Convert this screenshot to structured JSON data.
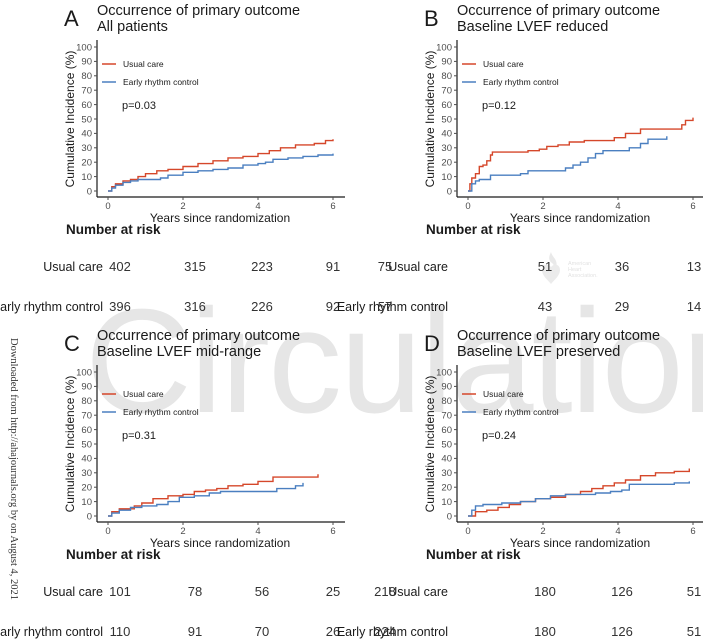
{
  "watermark": "Circulation",
  "side_text": "Downloaded from http://ahajournals.org by on August 4, 2021",
  "aha_logo": {
    "lines": [
      "American",
      "Heart",
      "Association."
    ]
  },
  "colors": {
    "usual_care": "#d5472a",
    "early_rhythm_control": "#4a7fc0",
    "axis": "#1a1a1a",
    "tick": "#4d4d4d"
  },
  "chart_data": [
    {
      "type": "line",
      "panel": "A",
      "title": "Occurrence of primary outcome",
      "subtitle": "All patients",
      "xlabel": "Years since randomization",
      "ylabel": "Cumulative Incidence (%)",
      "xlim": [
        0,
        6
      ],
      "ylim": [
        0,
        100
      ],
      "xticks": [
        0,
        2,
        4,
        6
      ],
      "yticks": [
        0,
        10,
        20,
        30,
        40,
        50,
        60,
        70,
        80,
        90,
        100
      ],
      "legend": [
        "Usual care",
        "Early rhythm control"
      ],
      "legend_position": "top-left",
      "p_value": "p=0.03",
      "series": [
        {
          "name": "Usual care",
          "x": [
            0,
            0.1,
            0.2,
            0.4,
            0.6,
            0.8,
            1.0,
            1.3,
            1.6,
            2.0,
            2.4,
            2.8,
            3.2,
            3.6,
            4.0,
            4.3,
            4.6,
            5.0,
            5.5,
            5.8,
            6.0
          ],
          "y": [
            0,
            3,
            5,
            7,
            8,
            10,
            12,
            14,
            15,
            17,
            19,
            21,
            23,
            24,
            26,
            28,
            30,
            32,
            33,
            35,
            36
          ]
        },
        {
          "name": "Early rhythm control",
          "x": [
            0,
            0.1,
            0.2,
            0.4,
            0.6,
            0.8,
            1.0,
            1.4,
            1.6,
            2.0,
            2.4,
            2.8,
            3.2,
            3.6,
            4.0,
            4.2,
            4.4,
            4.8,
            5.2,
            5.6,
            6.0
          ],
          "y": [
            0,
            2,
            4,
            6,
            7,
            8,
            8,
            9,
            11,
            13,
            14,
            15,
            16,
            18,
            19,
            20,
            22,
            23,
            24,
            25,
            26
          ]
        }
      ],
      "risk_table": {
        "title": "Number at risk",
        "times": [
          0,
          2,
          4,
          6
        ],
        "rows": [
          {
            "label": "Usual care",
            "values": [
              402,
              315,
              223,
              91
            ]
          },
          {
            "label": "Early rhythm control",
            "values": [
              396,
              316,
              226,
              92
            ]
          }
        ]
      }
    },
    {
      "type": "line",
      "panel": "B",
      "title": "Occurrence of primary outcome",
      "subtitle": "Baseline LVEF reduced",
      "xlabel": "Years since randomization",
      "ylabel": "Cumulative Incidence (%)",
      "xlim": [
        0,
        6
      ],
      "ylim": [
        0,
        100
      ],
      "xticks": [
        0,
        2,
        4,
        6
      ],
      "yticks": [
        0,
        10,
        20,
        30,
        40,
        50,
        60,
        70,
        80,
        90,
        100
      ],
      "legend": [
        "Usual care",
        "Early rhythm control"
      ],
      "legend_position": "top-left",
      "p_value": "p=0.12",
      "series": [
        {
          "name": "Usual care",
          "x": [
            0,
            0.05,
            0.1,
            0.2,
            0.3,
            0.4,
            0.5,
            0.6,
            0.65,
            1.6,
            1.9,
            2.1,
            2.4,
            2.7,
            3.1,
            3.9,
            4.2,
            4.6,
            5.7,
            5.8,
            6.0
          ],
          "y": [
            0,
            5,
            9,
            12,
            17,
            18,
            21,
            25,
            27,
            28,
            29,
            31,
            32,
            34,
            35,
            37,
            40,
            43,
            46,
            49,
            51
          ]
        },
        {
          "name": "Early rhythm control",
          "x": [
            0,
            0.1,
            0.2,
            0.3,
            0.6,
            1.4,
            1.6,
            2.6,
            2.8,
            3.0,
            3.2,
            3.4,
            3.6,
            4.3,
            4.6,
            4.8,
            5.3
          ],
          "y": [
            0,
            5,
            7,
            8,
            11,
            12,
            14,
            16,
            18,
            20,
            23,
            26,
            28,
            30,
            33,
            36,
            38
          ]
        }
      ],
      "risk_table": {
        "title": "Number at risk",
        "times": [
          0,
          2,
          4,
          6
        ],
        "rows": [
          {
            "label": "Usual care",
            "values": [
              75,
              51,
              36,
              13
            ]
          },
          {
            "label": "Early rhythm control",
            "values": [
              57,
              43,
              29,
              14
            ]
          }
        ]
      }
    },
    {
      "type": "line",
      "panel": "C",
      "title": "Occurrence of primary outcome",
      "subtitle": "Baseline LVEF mid-range",
      "xlabel": "Years since randomization",
      "ylabel": "Cumulative Incidence (%)",
      "xlim": [
        0,
        6
      ],
      "ylim": [
        0,
        100
      ],
      "xticks": [
        0,
        2,
        4,
        6
      ],
      "yticks": [
        0,
        10,
        20,
        30,
        40,
        50,
        60,
        70,
        80,
        90,
        100
      ],
      "legend": [
        "Usual care",
        "Early rhythm control"
      ],
      "legend_position": "top-left",
      "p_value": "p=0.31",
      "series": [
        {
          "name": "Usual care",
          "x": [
            0,
            0.1,
            0.3,
            0.7,
            0.9,
            1.2,
            1.6,
            2.0,
            2.3,
            2.6,
            2.9,
            3.2,
            3.6,
            4.0,
            4.4,
            5.6
          ],
          "y": [
            0,
            3,
            5,
            7,
            9,
            12,
            14,
            15,
            17,
            18,
            19,
            21,
            22,
            24,
            27,
            29
          ]
        },
        {
          "name": "Early rhythm control",
          "x": [
            0,
            0.1,
            0.3,
            0.6,
            0.9,
            1.3,
            1.6,
            1.9,
            2.3,
            2.7,
            3.0,
            3.6,
            4.2,
            4.5,
            5.0,
            5.2
          ],
          "y": [
            0,
            2,
            4,
            6,
            7,
            8,
            10,
            13,
            14,
            16,
            17,
            17,
            17,
            19,
            21,
            23
          ]
        }
      ],
      "risk_table": {
        "title": "Number at risk",
        "times": [
          0,
          2,
          4,
          6
        ],
        "rows": [
          {
            "label": "Usual care",
            "values": [
              101,
              78,
              56,
              25
            ]
          },
          {
            "label": "Early rhythm control",
            "values": [
              110,
              91,
              70,
              26
            ]
          }
        ]
      }
    },
    {
      "type": "line",
      "panel": "D",
      "title": "Occurrence of primary outcome",
      "subtitle": "Baseline LVEF preserved",
      "xlabel": "Years since randomization",
      "ylabel": "Cumulative Incidence (%)",
      "xlim": [
        0,
        6
      ],
      "ylim": [
        0,
        100
      ],
      "xticks": [
        0,
        2,
        4,
        6
      ],
      "yticks": [
        0,
        10,
        20,
        30,
        40,
        50,
        60,
        70,
        80,
        90,
        100
      ],
      "legend": [
        "Usual care",
        "Early rhythm control"
      ],
      "legend_position": "top-left",
      "p_value": "p=0.24",
      "series": [
        {
          "name": "Usual care",
          "x": [
            0,
            0.2,
            0.5,
            0.8,
            1.1,
            1.4,
            1.8,
            2.2,
            2.6,
            3.0,
            3.3,
            3.6,
            3.9,
            4.2,
            4.6,
            5.0,
            5.5,
            5.9
          ],
          "y": [
            0,
            3,
            4,
            6,
            8,
            10,
            12,
            13,
            15,
            17,
            19,
            21,
            23,
            25,
            28,
            30,
            31,
            33
          ]
        },
        {
          "name": "Early rhythm control",
          "x": [
            0,
            0.1,
            0.2,
            0.4,
            0.9,
            1.4,
            1.8,
            2.2,
            2.6,
            3.0,
            3.4,
            3.8,
            4.1,
            4.3,
            5.0,
            5.5,
            5.9
          ],
          "y": [
            0,
            4,
            7,
            8,
            9,
            10,
            12,
            14,
            15,
            15,
            16,
            17,
            18,
            22,
            22,
            23,
            24
          ]
        }
      ],
      "risk_table": {
        "title": "Number at risk",
        "times": [
          0,
          2,
          4,
          6
        ],
        "rows": [
          {
            "label": "Usual care",
            "values": [
              218,
              180,
              126,
              51
            ]
          },
          {
            "label": "Early rhythm control",
            "values": [
              224,
              180,
              126,
              51
            ]
          }
        ]
      }
    }
  ]
}
